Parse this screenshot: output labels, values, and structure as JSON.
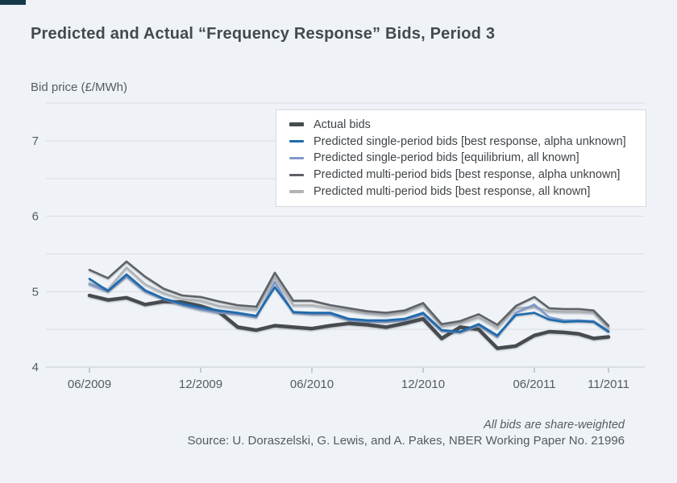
{
  "page": {
    "background": "#eff3f7",
    "accent_bar_color": "#16384a"
  },
  "chart_data": {
    "type": "line",
    "title": "Predicted and Actual “Frequency Response” Bids, Period 3",
    "ylabel": "Bid price (£/MWh)",
    "xlabel": "",
    "ylim": [
      4,
      7.5
    ],
    "gridline_step": 0.5,
    "grid": true,
    "legend_position": "top-right",
    "y_tick_labels": [
      "4",
      "5",
      "6",
      "7"
    ],
    "x_tick_labels": [
      "06/2009",
      "12/2009",
      "06/2010",
      "12/2010",
      "06/2011",
      "11/2011"
    ],
    "x_tick_indices": [
      0,
      6,
      12,
      18,
      24,
      29
    ],
    "x": [
      "06/2009",
      "07/2009",
      "08/2009",
      "09/2009",
      "10/2009",
      "11/2009",
      "12/2009",
      "01/2010",
      "02/2010",
      "03/2010",
      "04/2010",
      "05/2010",
      "06/2010",
      "07/2010",
      "08/2010",
      "09/2010",
      "10/2010",
      "11/2010",
      "12/2010",
      "01/2011",
      "02/2011",
      "03/2011",
      "04/2011",
      "05/2011",
      "06/2011",
      "07/2011",
      "08/2011",
      "09/2011",
      "10/2011",
      "11/2011"
    ],
    "series": [
      {
        "name": "Actual bids",
        "color": "#474c4f",
        "line_width": 4.5,
        "values": [
          4.95,
          4.89,
          4.92,
          4.83,
          4.87,
          4.86,
          4.81,
          4.73,
          4.53,
          4.49,
          4.55,
          4.53,
          4.51,
          4.55,
          4.58,
          4.56,
          4.53,
          4.58,
          4.64,
          4.38,
          4.53,
          4.5,
          4.25,
          4.28,
          4.42,
          4.47,
          4.46,
          4.44,
          4.38,
          4.4
        ]
      },
      {
        "name": "Predicted single-period bids [best response, alpha unknown]",
        "color": "#1f6aad",
        "line_width": 2.6,
        "values": [
          5.17,
          5.01,
          5.23,
          5.02,
          4.91,
          4.84,
          4.79,
          4.75,
          4.72,
          4.68,
          5.06,
          4.73,
          4.72,
          4.72,
          4.64,
          4.62,
          4.62,
          4.64,
          4.72,
          4.49,
          4.47,
          4.57,
          4.42,
          4.69,
          4.72,
          4.63,
          4.6,
          4.61,
          4.6,
          4.47
        ]
      },
      {
        "name": "Predicted single-period bids [equilibrium, all known]",
        "color": "#7f9aca",
        "line_width": 2.6,
        "values": [
          5.1,
          5.0,
          5.2,
          5.0,
          4.9,
          4.82,
          4.76,
          4.72,
          4.7,
          4.66,
          5.13,
          4.72,
          4.7,
          4.7,
          4.62,
          4.6,
          4.6,
          4.62,
          4.7,
          4.48,
          4.46,
          4.55,
          4.4,
          4.72,
          4.83,
          4.66,
          4.62,
          4.62,
          4.61,
          4.48
        ]
      },
      {
        "name": "Predicted multi-period bids [best response, alpha unknown]",
        "color": "#5e6266",
        "line_width": 2.6,
        "values": [
          5.29,
          5.18,
          5.4,
          5.2,
          5.04,
          4.95,
          4.93,
          4.87,
          4.82,
          4.8,
          5.25,
          4.88,
          4.88,
          4.82,
          4.78,
          4.74,
          4.72,
          4.75,
          4.85,
          4.57,
          4.61,
          4.7,
          4.56,
          4.81,
          4.93,
          4.78,
          4.77,
          4.77,
          4.75,
          4.55
        ]
      },
      {
        "name": "Predicted multi-period bids [best response, all known]",
        "color": "#b2b5b8",
        "line_width": 2.6,
        "values": [
          5.11,
          5.03,
          5.32,
          5.1,
          4.98,
          4.9,
          4.88,
          4.81,
          4.78,
          4.76,
          5.19,
          4.82,
          4.82,
          4.78,
          4.75,
          4.71,
          4.69,
          4.72,
          4.82,
          4.54,
          4.58,
          4.66,
          4.52,
          4.78,
          4.8,
          4.74,
          4.73,
          4.73,
          4.72,
          4.52
        ]
      }
    ],
    "colors": {
      "gridline": "#d9dde1",
      "axis_line": "#c6cbcf",
      "tick_mark": "#9aa0a4",
      "tick_label": "#565b5f"
    }
  },
  "footer": {
    "note": "All bids are share-weighted",
    "source": "Source: U. Doraszelski, G. Lewis, and A. Pakes, NBER Working Paper No. 21996"
  }
}
